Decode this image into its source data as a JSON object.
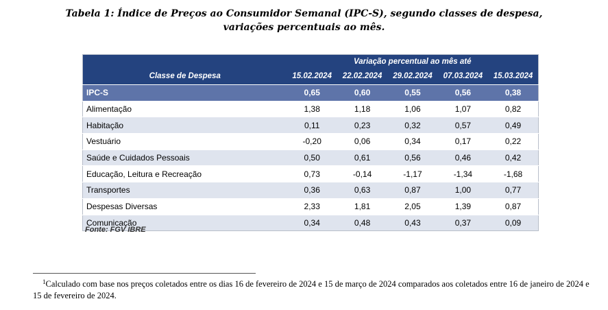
{
  "title": {
    "label": "Tabela 1",
    "colon": ":",
    "line1": "Índice de Preços ao Consumidor Semanal (IPC-S), segundo classes de despesa,",
    "line2": "variações percentuais ao mês."
  },
  "table": {
    "span_header": "Variação percentual ao mês até",
    "classe_header": "Classe de Despesa",
    "dates": [
      "15.02.2024",
      "22.02.2024",
      "29.02.2024",
      "07.03.2024",
      "15.03.2024"
    ],
    "rows": [
      {
        "name": "IPC-S",
        "values": [
          "0,65",
          "0,60",
          "0,55",
          "0,56",
          "0,38"
        ]
      },
      {
        "name": "Alimentação",
        "values": [
          "1,38",
          "1,18",
          "1,06",
          "1,07",
          "0,82"
        ]
      },
      {
        "name": "Habitação",
        "values": [
          "0,11",
          "0,23",
          "0,32",
          "0,57",
          "0,49"
        ]
      },
      {
        "name": "Vestuário",
        "values": [
          "-0,20",
          "0,06",
          "0,34",
          "0,17",
          "0,22"
        ]
      },
      {
        "name": "Saúde e Cuidados Pessoais",
        "values": [
          "0,50",
          "0,61",
          "0,56",
          "0,46",
          "0,42"
        ]
      },
      {
        "name": "Educação, Leitura e Recreação",
        "values": [
          "0,73",
          "-0,14",
          "-1,17",
          "-1,34",
          "-1,68"
        ]
      },
      {
        "name": "Transportes",
        "values": [
          "0,36",
          "0,63",
          "0,87",
          "1,00",
          "0,77"
        ]
      },
      {
        "name": "Despesas Diversas",
        "values": [
          "2,33",
          "1,81",
          "2,05",
          "1,39",
          "0,87"
        ]
      },
      {
        "name": "Comunicação",
        "values": [
          "0,34",
          "0,48",
          "0,43",
          "0,37",
          "0,09"
        ]
      }
    ]
  },
  "source": "Fonte: FGV IBRE",
  "footnote": {
    "marker": "1",
    "text": "Calculado com base nos preços coletados entre os dias 16 de fevereiro de 2024 e 15 de março de 2024 comparados aos coletados entre 16 de janeiro de 2024 e 15 de fevereiro de 2024."
  },
  "colors": {
    "header_bg": "#24437f",
    "highlight_row_bg": "#5e74a9",
    "stripe_bg": "#dfe4ee"
  }
}
